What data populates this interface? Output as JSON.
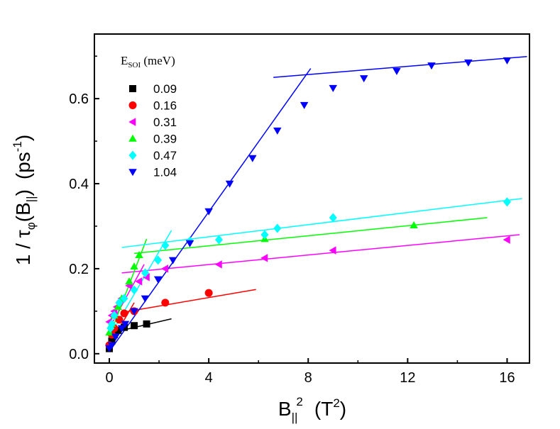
{
  "chart_data": {
    "type": "scatter",
    "title": "",
    "xlabel": {
      "base": "B",
      "sub": "||",
      "sup": "2",
      "unit_base": "(T",
      "unit_sup": "2",
      "unit_end": ")"
    },
    "ylabel": {
      "prefix": "1 / τ",
      "sub1": "φ",
      "mid": "(B",
      "sub2": "||",
      "end": ")",
      "unit_base": "(ps",
      "unit_sup": "-1",
      "unit_end": ")"
    },
    "xlim": [
      -0.6,
      16.9
    ],
    "ylim": [
      -0.022,
      0.752
    ],
    "xticks": [
      0,
      4,
      8,
      12,
      16
    ],
    "xtick_labels": [
      "0",
      "4",
      "8",
      "12",
      "16"
    ],
    "yticks": [
      0.0,
      0.2,
      0.4,
      0.6
    ],
    "ytick_labels": [
      "0.0",
      "0.2",
      "0.4",
      "0.6"
    ],
    "legend_title": {
      "base": "E",
      "sub": "SOI",
      "rest": " (meV)"
    },
    "legend_position": "top-left",
    "series": [
      {
        "name": "0.09",
        "color": "#000000",
        "marker": "square",
        "x": [
          0.0,
          0.1,
          0.2,
          0.35,
          0.6,
          1.0,
          1.5
        ],
        "y": [
          0.012,
          0.03,
          0.045,
          0.055,
          0.062,
          0.066,
          0.07
        ],
        "fits": [
          {
            "x": [
              0,
              0.6
            ],
            "y": [
              0.01,
              0.066
            ]
          },
          {
            "x": [
              0.5,
              2.5
            ],
            "y": [
              0.055,
              0.082
            ]
          }
        ]
      },
      {
        "name": "0.16",
        "color": "#ff0000",
        "marker": "circle",
        "x": [
          0.0,
          0.1,
          0.2,
          0.4,
          0.6,
          1.0,
          2.25,
          4.0
        ],
        "y": [
          0.02,
          0.045,
          0.06,
          0.08,
          0.095,
          0.1,
          0.12,
          0.143
        ],
        "fits": [
          {
            "x": [
              0,
              1.0
            ],
            "y": [
              0.02,
              0.12
            ]
          },
          {
            "x": [
              0.5,
              5.9
            ],
            "y": [
              0.097,
              0.151
            ]
          }
        ]
      },
      {
        "name": "0.31",
        "color": "#ff00ff",
        "marker": "triangle-left",
        "x": [
          0.0,
          0.1,
          0.2,
          0.3,
          0.5,
          0.8,
          1.2,
          1.5,
          2.25,
          4.41,
          6.25,
          9.0,
          16.0
        ],
        "y": [
          0.075,
          0.09,
          0.1,
          0.11,
          0.13,
          0.16,
          0.17,
          0.18,
          0.2,
          0.21,
          0.225,
          0.243,
          0.268
        ],
        "fits": [
          {
            "x": [
              0,
              1.4
            ],
            "y": [
              0.06,
              0.21
            ]
          },
          {
            "x": [
              0.5,
              16.5
            ],
            "y": [
              0.19,
              0.28
            ]
          }
        ]
      },
      {
        "name": "0.39",
        "color": "#00ff00",
        "marker": "triangle-up",
        "x": [
          0.0,
          0.1,
          0.2,
          0.35,
          0.5,
          0.8,
          1.0,
          1.2,
          6.25,
          12.25
        ],
        "y": [
          0.05,
          0.07,
          0.09,
          0.11,
          0.13,
          0.17,
          0.205,
          0.232,
          0.27,
          0.302
        ],
        "fits": [
          {
            "x": [
              0,
              1.5
            ],
            "y": [
              0.04,
              0.27
            ]
          },
          {
            "x": [
              1.0,
              15.2
            ],
            "y": [
              0.236,
              0.32
            ]
          }
        ]
      },
      {
        "name": "0.47",
        "color": "#00ffff",
        "marker": "diamond",
        "x": [
          0.05,
          0.1,
          0.2,
          0.4,
          0.6,
          1.0,
          1.44,
          1.96,
          2.25,
          3.24,
          4.41,
          6.25,
          6.76,
          9.0,
          16.0
        ],
        "y": [
          0.06,
          0.07,
          0.09,
          0.12,
          0.13,
          0.15,
          0.19,
          0.22,
          0.255,
          0.265,
          0.268,
          0.28,
          0.295,
          0.32,
          0.357
        ],
        "fits": [
          {
            "x": [
              0,
              2.5
            ],
            "y": [
              0.04,
              0.29
            ]
          },
          {
            "x": [
              0.5,
              16.6
            ],
            "y": [
              0.25,
              0.365
            ]
          }
        ]
      },
      {
        "name": "1.04",
        "color": "#0000ff",
        "marker": "triangle-down",
        "x": [
          0.0,
          0.1,
          0.25,
          0.5,
          0.64,
          1.0,
          1.44,
          1.96,
          2.56,
          3.24,
          4.0,
          4.84,
          5.76,
          6.76,
          7.84,
          9.0,
          10.24,
          11.56,
          12.96,
          14.44,
          16.0
        ],
        "y": [
          0.013,
          0.02,
          0.04,
          0.06,
          0.07,
          0.1,
          0.13,
          0.175,
          0.22,
          0.26,
          0.335,
          0.4,
          0.46,
          0.525,
          0.585,
          0.625,
          0.648,
          0.665,
          0.678,
          0.685,
          0.69
        ],
        "fits": [
          {
            "x": [
              0,
              8.1
            ],
            "y": [
              0.005,
              0.671
            ]
          },
          {
            "x": [
              6.6,
              16.8
            ],
            "y": [
              0.65,
              0.699
            ]
          }
        ]
      }
    ]
  }
}
